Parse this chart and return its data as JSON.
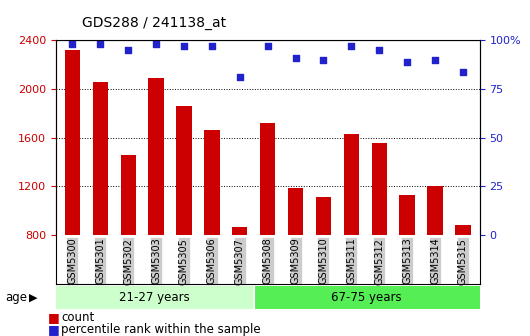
{
  "title": "GDS288 / 241138_at",
  "categories": [
    "GSM5300",
    "GSM5301",
    "GSM5302",
    "GSM5303",
    "GSM5305",
    "GSM5306",
    "GSM5307",
    "GSM5308",
    "GSM5309",
    "GSM5310",
    "GSM5311",
    "GSM5312",
    "GSM5313",
    "GSM5314",
    "GSM5315"
  ],
  "bar_values": [
    2320,
    2060,
    1460,
    2090,
    1860,
    1660,
    870,
    1720,
    1190,
    1110,
    1630,
    1560,
    1130,
    1200,
    880
  ],
  "percentile_values": [
    98,
    98,
    95,
    98,
    97,
    97,
    81,
    97,
    91,
    90,
    97,
    95,
    89,
    90,
    84
  ],
  "bar_color": "#cc0000",
  "dot_color": "#2222cc",
  "ylim_left": [
    800,
    2400
  ],
  "ylim_right": [
    0,
    100
  ],
  "yticks_left": [
    800,
    1200,
    1600,
    2000,
    2400
  ],
  "yticks_right": [
    0,
    25,
    50,
    75,
    100
  ],
  "ytick_labels_right": [
    "0",
    "25",
    "50",
    "75",
    "100%"
  ],
  "group1_label": "21-27 years",
  "group2_label": "67-75 years",
  "group1_count": 7,
  "age_label": "age",
  "legend_count": "count",
  "legend_percentile": "percentile rank within the sample",
  "bar_color_hex": "#cc0000",
  "dot_color_hex": "#2222cc",
  "tick_label_bg": "#cccccc",
  "group1_bg": "#ccffcc",
  "group2_bg": "#55ee55",
  "grid_color": "#000000",
  "bar_width": 0.55
}
